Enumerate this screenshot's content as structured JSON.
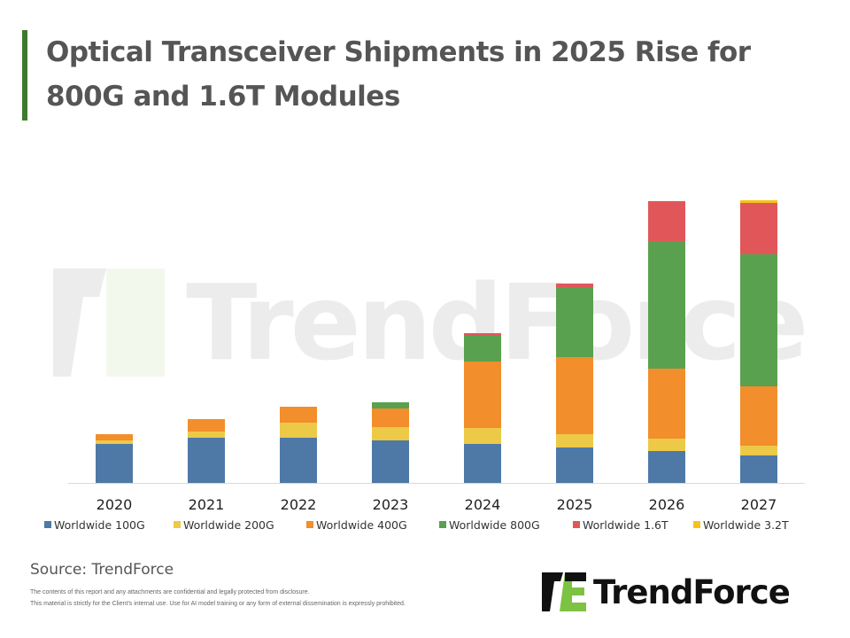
{
  "title": "Optical Transceiver Shipments in 2025 Rise for 800G and 1.6T Modules",
  "source": "Source: TrendForce",
  "disclaimer": [
    "The contents of this report and any attachments are confidential and legally protected from disclosure.",
    "This material is strictly for the Client's internal use. Use for AI model training or any form of external dissemination is expressly prohibited."
  ],
  "logo_text": "TrendForce",
  "watermark_text": "TrendForce",
  "chart_data": {
    "type": "bar",
    "stacked": true,
    "title": "Optical Transceiver Shipments in 2025 Rise for 800G and 1.6T Modules",
    "xlabel": "",
    "ylabel": "",
    "unit": "relative (no y-axis shown)",
    "grid": false,
    "legend_position": "bottom",
    "categories": [
      "2020",
      "2021",
      "2022",
      "2023",
      "2024",
      "2025",
      "2026",
      "2027"
    ],
    "series": [
      {
        "name": "Worldwide 100G",
        "color": "#4e79a7",
        "values": [
          44,
          51,
          51,
          48,
          44,
          40,
          36,
          31
        ]
      },
      {
        "name": "Worldwide 200G",
        "color": "#edc948",
        "values": [
          4,
          7,
          17,
          15,
          18,
          15,
          14,
          11
        ]
      },
      {
        "name": "Worldwide 400G",
        "color": "#f28e2b",
        "values": [
          7,
          14,
          18,
          21,
          75,
          87,
          79,
          67
        ]
      },
      {
        "name": "Worldwide 800G",
        "color": "#59a14f",
        "values": [
          0,
          0,
          0,
          7,
          29,
          79,
          144,
          149
        ]
      },
      {
        "name": "Worldwide 1.6T",
        "color": "#e15759",
        "values": [
          0,
          0,
          0,
          0,
          3,
          4,
          45,
          58
        ]
      },
      {
        "name": "Worldwide 3.2T",
        "color": "#f7c21b",
        "values": [
          0,
          0,
          0,
          0,
          0,
          0,
          0,
          3
        ]
      }
    ],
    "ylim": [
      0,
      320
    ]
  }
}
